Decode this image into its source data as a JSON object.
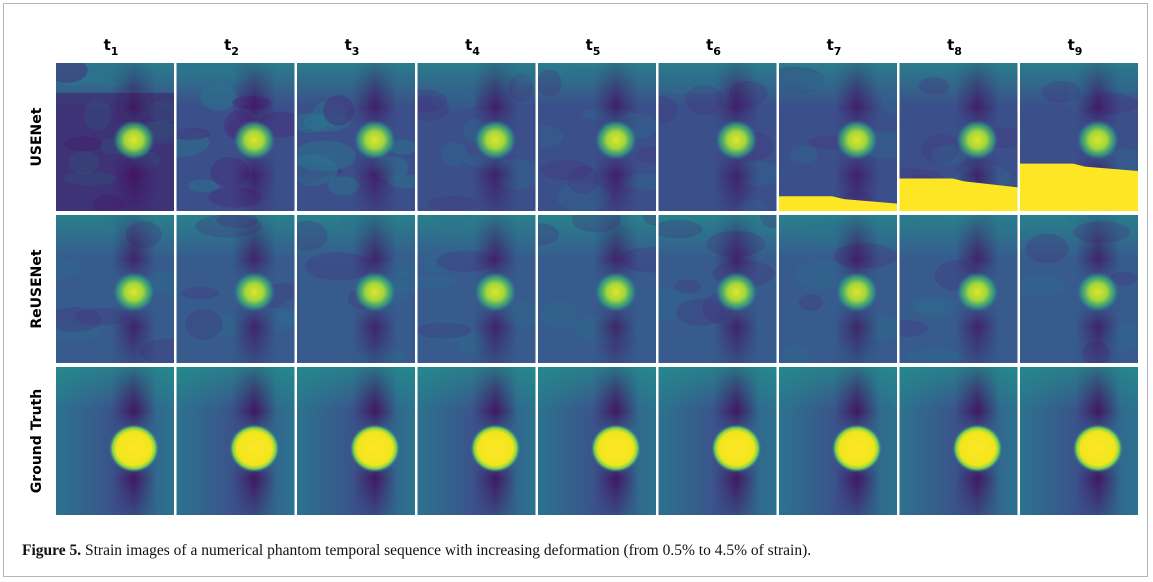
{
  "columns": [
    {
      "base": "t",
      "sub": "1"
    },
    {
      "base": "t",
      "sub": "2"
    },
    {
      "base": "t",
      "sub": "3"
    },
    {
      "base": "t",
      "sub": "4"
    },
    {
      "base": "t",
      "sub": "5"
    },
    {
      "base": "t",
      "sub": "6"
    },
    {
      "base": "t",
      "sub": "7"
    },
    {
      "base": "t",
      "sub": "8"
    },
    {
      "base": "t",
      "sub": "9"
    }
  ],
  "rows": [
    "USENet",
    "ReUSENet",
    "Ground Truth"
  ],
  "caption": {
    "label": "Figure 5.",
    "text": "Strain images of a numerical phantom temporal sequence with increasing deformation (from 0.5% to 4.5% of strain)."
  }
}
